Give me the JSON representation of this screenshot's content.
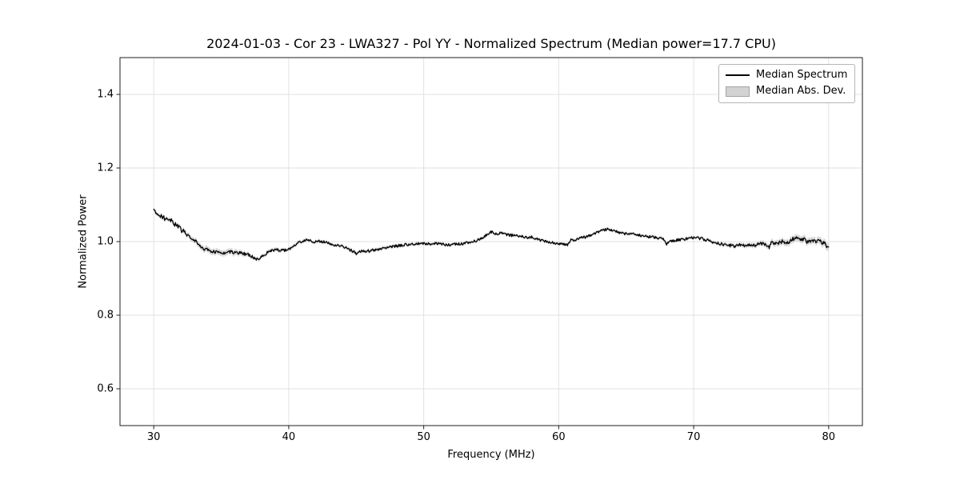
{
  "figure": {
    "title": "2024-01-03 - Cor 23 - LWA327 - Pol YY - Normalized Spectrum (Median power=17.7 CPU)"
  },
  "chart_data": {
    "type": "line",
    "title": "2024-01-03 - Cor 23 - LWA327 - Pol YY - Normalized Spectrum (Median power=17.7 CPU)",
    "xlabel": "Frequency (MHz)",
    "ylabel": "Normalized Power",
    "xlim": [
      27.5,
      82.5
    ],
    "ylim": [
      0.5,
      1.5
    ],
    "xticks": [
      30,
      40,
      50,
      60,
      70,
      80
    ],
    "xtick_labels": [
      "30",
      "40",
      "50",
      "60",
      "70",
      "80"
    ],
    "yticks": [
      0.6,
      0.8,
      1.0,
      1.2,
      1.4
    ],
    "ytick_labels": [
      "0.6",
      "0.8",
      "1.0",
      "1.2",
      "1.4"
    ],
    "grid": true,
    "grid_color": "#e2e2e2",
    "spine_color": "#1f1f1f",
    "legend_position": "upper right",
    "legend": [
      {
        "label": "Median Spectrum",
        "type": "line",
        "color": "#000000"
      },
      {
        "label": "Median Abs. Dev.",
        "type": "patch",
        "fill": "#d3d3d3",
        "edge": "#a3a3a3"
      }
    ],
    "series": [
      {
        "name": "Median Spectrum",
        "color": "#000000",
        "anchors": [
          [
            30.0,
            1.092
          ],
          [
            30.15,
            1.082
          ],
          [
            30.3,
            1.075
          ],
          [
            30.5,
            1.07
          ],
          [
            30.7,
            1.064
          ],
          [
            31.0,
            1.061
          ],
          [
            31.2,
            1.063
          ],
          [
            31.5,
            1.048
          ],
          [
            31.8,
            1.04
          ],
          [
            32.1,
            1.03
          ],
          [
            32.4,
            1.022
          ],
          [
            32.7,
            1.013
          ],
          [
            33.0,
            1.003
          ],
          [
            33.3,
            0.992
          ],
          [
            33.6,
            0.984
          ],
          [
            34.0,
            0.976
          ],
          [
            34.4,
            0.972
          ],
          [
            34.8,
            0.97
          ],
          [
            35.2,
            0.971
          ],
          [
            35.6,
            0.972
          ],
          [
            36.0,
            0.97
          ],
          [
            36.4,
            0.969
          ],
          [
            36.8,
            0.966
          ],
          [
            37.1,
            0.963
          ],
          [
            37.4,
            0.957
          ],
          [
            37.6,
            0.951
          ],
          [
            37.8,
            0.954
          ],
          [
            38.1,
            0.963
          ],
          [
            38.5,
            0.972
          ],
          [
            39.0,
            0.978
          ],
          [
            39.4,
            0.977
          ],
          [
            39.8,
            0.976
          ],
          [
            40.2,
            0.982
          ],
          [
            40.6,
            0.995
          ],
          [
            41.0,
            1.001
          ],
          [
            41.4,
            1.005
          ],
          [
            41.8,
            0.999
          ],
          [
            42.2,
            1.002
          ],
          [
            42.6,
            0.999
          ],
          [
            43.0,
            0.996
          ],
          [
            43.4,
            0.991
          ],
          [
            43.8,
            0.988
          ],
          [
            44.2,
            0.984
          ],
          [
            44.6,
            0.976
          ],
          [
            44.9,
            0.972
          ],
          [
            45.0,
            0.962
          ],
          [
            45.1,
            0.972
          ],
          [
            45.5,
            0.975
          ],
          [
            46.0,
            0.974
          ],
          [
            46.5,
            0.979
          ],
          [
            47.0,
            0.983
          ],
          [
            47.5,
            0.986
          ],
          [
            48.0,
            0.988
          ],
          [
            48.5,
            0.991
          ],
          [
            49.0,
            0.992
          ],
          [
            49.5,
            0.994
          ],
          [
            50.0,
            0.995
          ],
          [
            50.5,
            0.994
          ],
          [
            51.0,
            0.995
          ],
          [
            51.5,
            0.992
          ],
          [
            52.0,
            0.991
          ],
          [
            52.5,
            0.993
          ],
          [
            53.0,
            0.995
          ],
          [
            53.5,
            0.998
          ],
          [
            54.0,
            1.004
          ],
          [
            54.5,
            1.014
          ],
          [
            54.8,
            1.022
          ],
          [
            55.1,
            1.027
          ],
          [
            55.4,
            1.019
          ],
          [
            55.7,
            1.024
          ],
          [
            56.0,
            1.02
          ],
          [
            56.4,
            1.017
          ],
          [
            56.8,
            1.018
          ],
          [
            57.2,
            1.014
          ],
          [
            57.6,
            1.011
          ],
          [
            58.0,
            1.012
          ],
          [
            58.4,
            1.006
          ],
          [
            58.8,
            1.002
          ],
          [
            59.2,
            0.999
          ],
          [
            59.6,
            0.997
          ],
          [
            60.0,
            0.995
          ],
          [
            60.4,
            0.992
          ],
          [
            60.7,
            0.991
          ],
          [
            60.9,
            1.006
          ],
          [
            61.1,
            1.002
          ],
          [
            61.4,
            1.008
          ],
          [
            62.0,
            1.013
          ],
          [
            62.4,
            1.018
          ],
          [
            63.0,
            1.028
          ],
          [
            63.4,
            1.032
          ],
          [
            63.7,
            1.034
          ],
          [
            64.0,
            1.03
          ],
          [
            64.4,
            1.026
          ],
          [
            64.8,
            1.022
          ],
          [
            65.2,
            1.02
          ],
          [
            65.6,
            1.022
          ],
          [
            66.0,
            1.017
          ],
          [
            66.4,
            1.014
          ],
          [
            67.0,
            1.013
          ],
          [
            67.4,
            1.01
          ],
          [
            67.8,
            1.006
          ],
          [
            68.0,
            0.993
          ],
          [
            68.3,
            1.002
          ],
          [
            68.7,
            1.004
          ],
          [
            69.0,
            1.005
          ],
          [
            69.5,
            1.008
          ],
          [
            70.0,
            1.01
          ],
          [
            70.5,
            1.009
          ],
          [
            71.0,
            1.004
          ],
          [
            71.5,
            0.998
          ],
          [
            72.0,
            0.993
          ],
          [
            72.5,
            0.99
          ],
          [
            73.0,
            0.988
          ],
          [
            73.3,
            0.992
          ],
          [
            73.7,
            0.989
          ],
          [
            74.0,
            0.993
          ],
          [
            74.3,
            0.99
          ],
          [
            74.7,
            0.991
          ],
          [
            75.0,
            0.994
          ],
          [
            75.4,
            0.99
          ],
          [
            75.6,
            0.985
          ],
          [
            75.8,
            1.0
          ],
          [
            76.1,
            0.995
          ],
          [
            76.5,
            1.0
          ],
          [
            76.8,
            0.996
          ],
          [
            77.1,
            1.0
          ],
          [
            77.4,
            1.008
          ],
          [
            77.6,
            1.016
          ],
          [
            77.8,
            1.006
          ],
          [
            78.1,
            1.008
          ],
          [
            78.4,
            1.001
          ],
          [
            78.7,
            1.004
          ],
          [
            79.0,
            1.0
          ],
          [
            79.3,
            1.001
          ],
          [
            79.6,
            0.996
          ],
          [
            79.8,
            0.992
          ],
          [
            80.0,
            0.981
          ]
        ]
      },
      {
        "name": "Median Abs. Dev.",
        "color": "#cfcfcf",
        "opacity": 0.85,
        "halfwidth_anchors": [
          [
            30,
            0.005
          ],
          [
            32,
            0.006
          ],
          [
            34,
            0.008
          ],
          [
            36,
            0.008
          ],
          [
            37,
            0.006
          ],
          [
            38,
            0.005
          ],
          [
            40,
            0.005
          ],
          [
            43,
            0.004
          ],
          [
            46,
            0.005
          ],
          [
            50,
            0.004
          ],
          [
            54,
            0.004
          ],
          [
            58,
            0.004
          ],
          [
            62,
            0.004
          ],
          [
            66,
            0.004
          ],
          [
            70,
            0.004
          ],
          [
            72,
            0.005
          ],
          [
            74,
            0.006
          ],
          [
            75,
            0.007
          ],
          [
            76,
            0.008
          ],
          [
            77,
            0.009
          ],
          [
            78,
            0.009
          ],
          [
            79,
            0.009
          ],
          [
            80,
            0.01
          ]
        ]
      }
    ],
    "noise": {
      "seed": 20240103,
      "sample_step_mhz": 0.05,
      "amplitude_anchors": [
        [
          30,
          0.007
        ],
        [
          33,
          0.006
        ],
        [
          35,
          0.005
        ],
        [
          38,
          0.004
        ],
        [
          41,
          0.0035
        ],
        [
          45,
          0.004
        ],
        [
          50,
          0.0035
        ],
        [
          55,
          0.004
        ],
        [
          60,
          0.0035
        ],
        [
          65,
          0.0035
        ],
        [
          70,
          0.004
        ],
        [
          73,
          0.0045
        ],
        [
          76,
          0.0055
        ],
        [
          80,
          0.006
        ]
      ]
    }
  }
}
